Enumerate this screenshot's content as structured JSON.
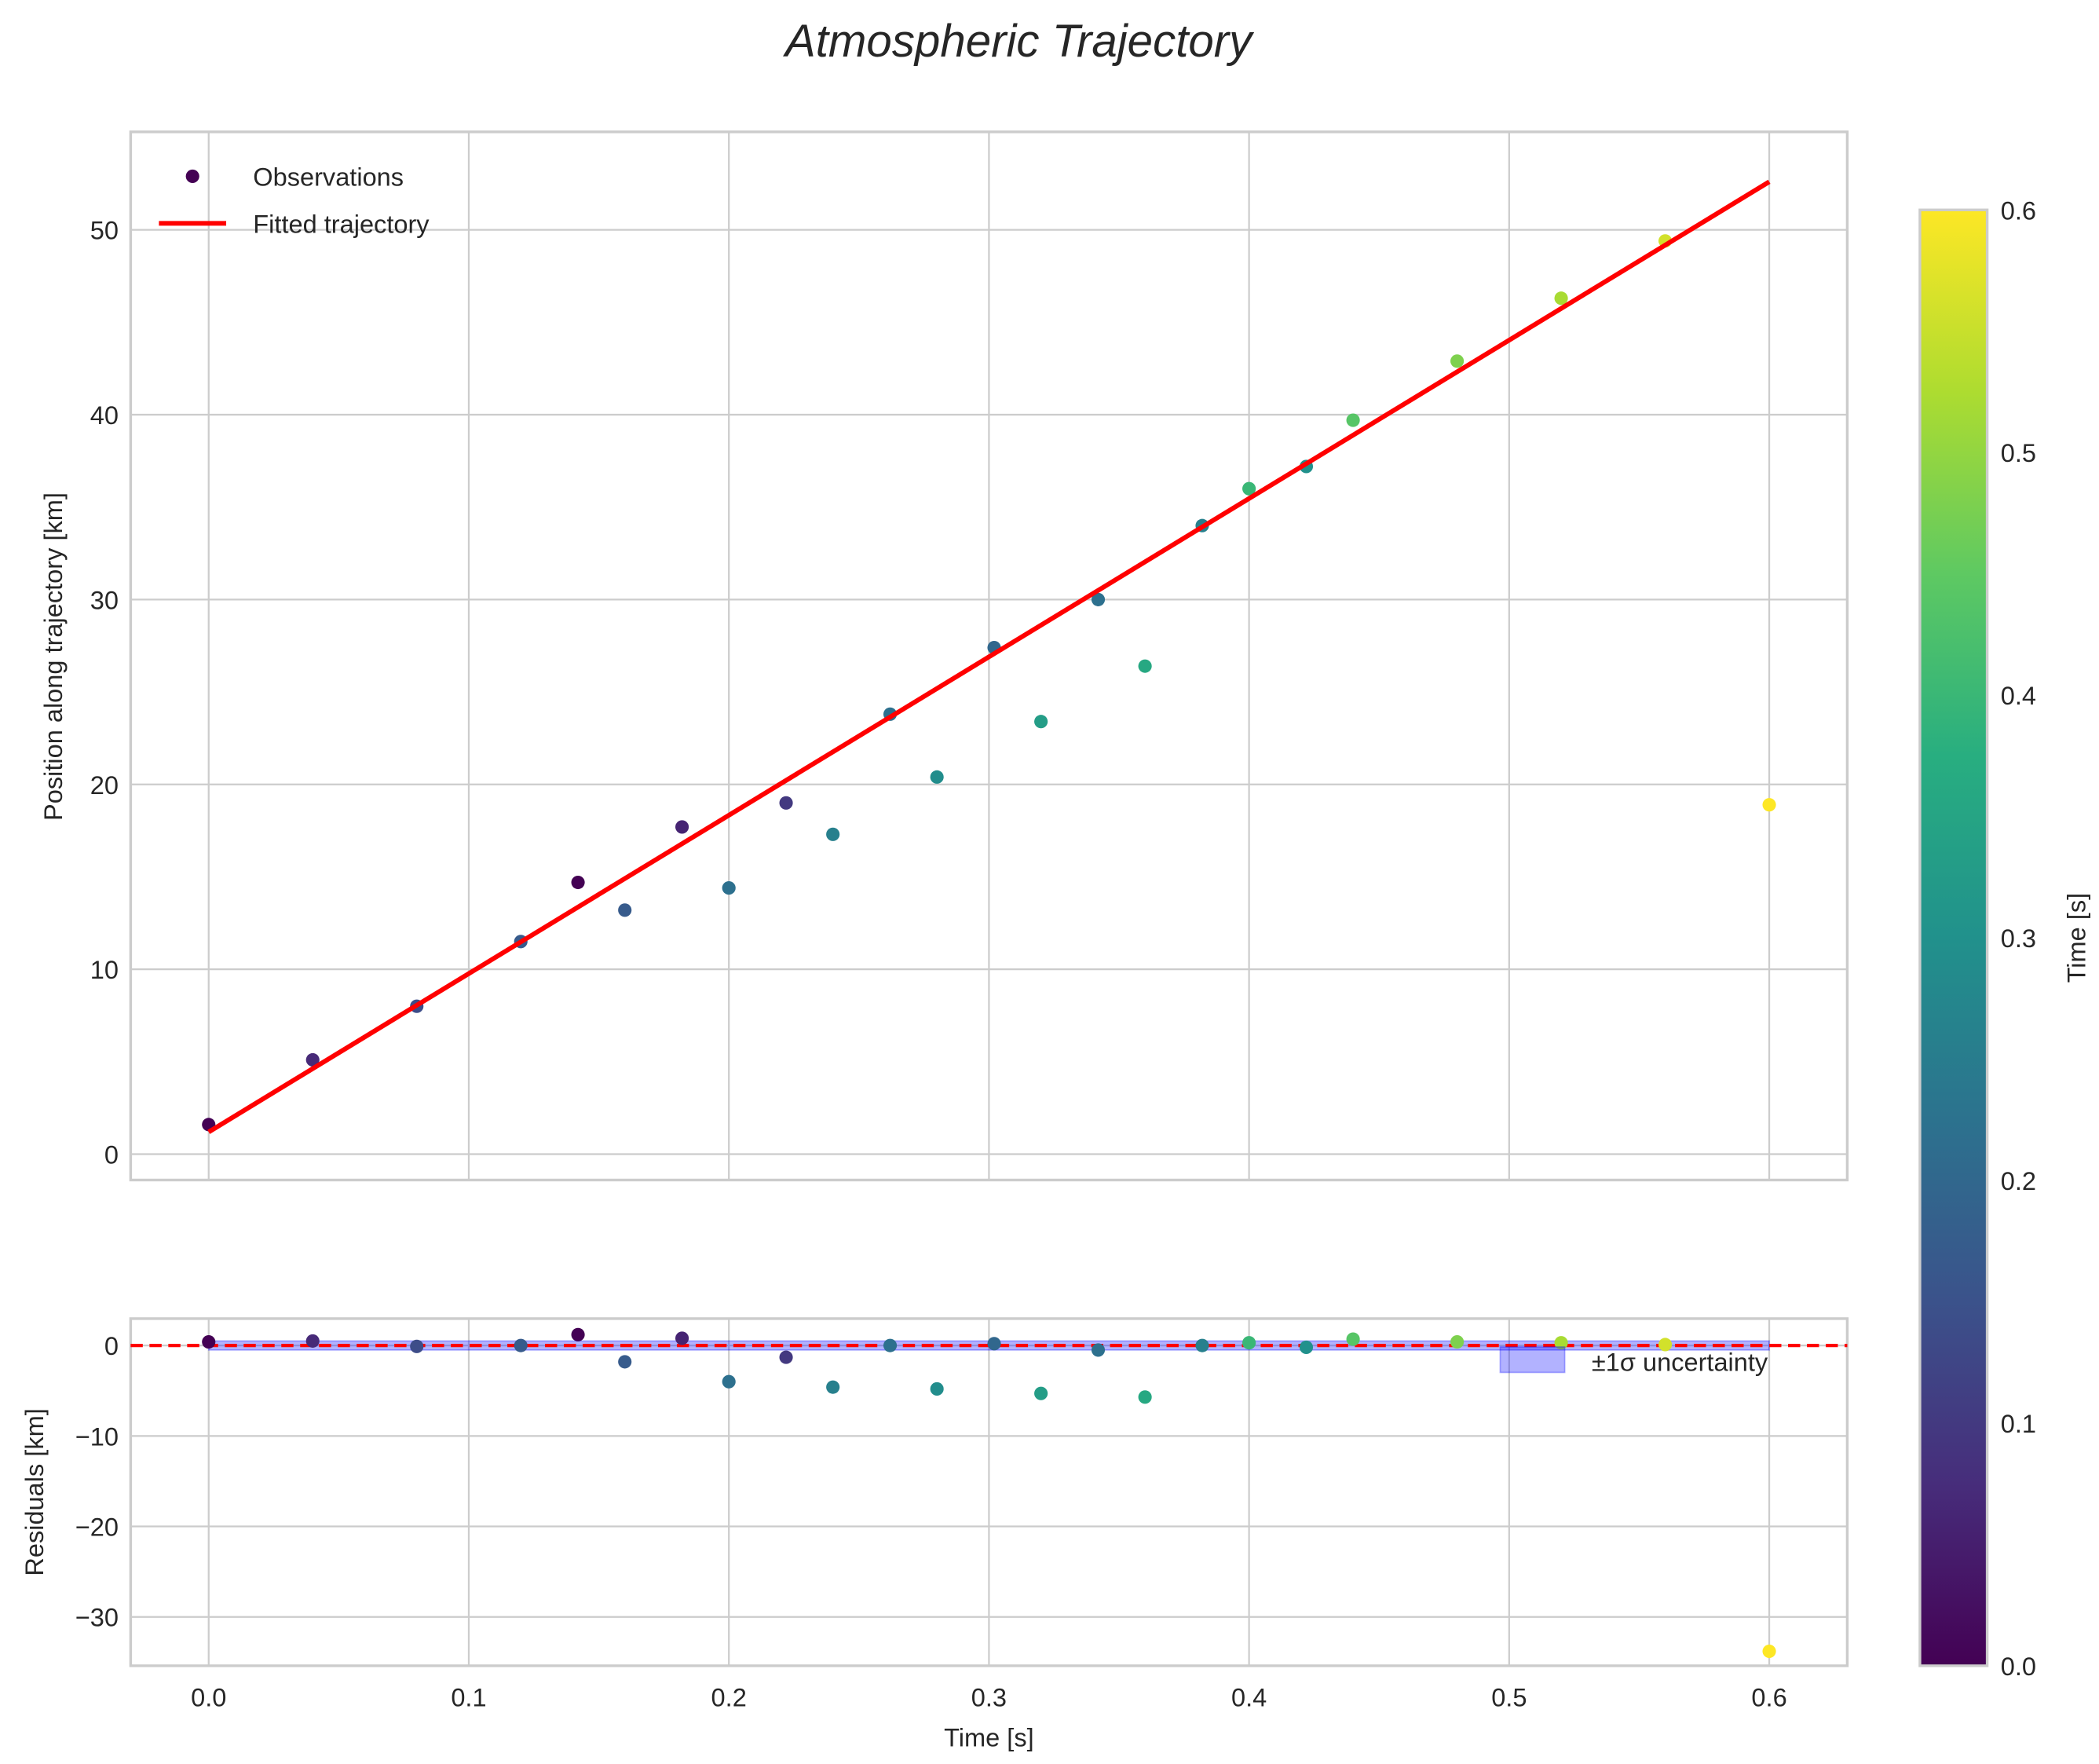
{
  "chart_data": [
    {
      "type": "scatter",
      "title": "Atmospheric Trajectory",
      "xlabel": "",
      "ylabel": "Position along trajectory [km]",
      "xlim": [
        -0.03,
        0.63
      ],
      "ylim": [
        -1.4,
        55.3
      ],
      "xticks": [
        "0.0",
        "0.1",
        "0.2",
        "0.3",
        "0.4",
        "0.5",
        "0.6"
      ],
      "yticks": [
        "0",
        "10",
        "20",
        "30",
        "40",
        "50"
      ],
      "grid": true,
      "legend": {
        "placement": "top-left",
        "entries": [
          "Observations",
          "Fitted trajectory"
        ]
      },
      "series": [
        {
          "name": "Observations",
          "type": "scatter",
          "x": [
            0,
            0.04,
            0.08,
            0.12,
            0.142,
            0.16,
            0.182,
            0.2,
            0.222,
            0.24,
            0.262,
            0.28,
            0.302,
            0.32,
            0.342,
            0.36,
            0.382,
            0.4,
            0.422,
            0.44,
            0.48,
            0.52,
            0.56,
            0.6
          ],
          "y": [
            1.6,
            5.1,
            8.0,
            11.5,
            14.7,
            13.2,
            17.7,
            14.4,
            19.0,
            17.3,
            23.8,
            20.4,
            27.4,
            23.4,
            30.0,
            26.4,
            34.0,
            36.0,
            37.2,
            39.7,
            42.9,
            46.3,
            49.4,
            18.9
          ],
          "color_value": [
            0.0,
            0.07,
            0.14,
            0.17,
            0.0,
            0.17,
            0.06,
            0.22,
            0.1,
            0.26,
            0.22,
            0.29,
            0.2,
            0.33,
            0.22,
            0.36,
            0.26,
            0.4,
            0.3,
            0.44,
            0.48,
            0.52,
            0.56,
            0.6
          ]
        },
        {
          "name": "Fitted trajectory",
          "type": "line",
          "x": [
            0,
            0.6
          ],
          "y": [
            1.2,
            52.6
          ],
          "color": "#ff0000"
        }
      ]
    },
    {
      "type": "scatter",
      "xlabel": "Time [s]",
      "ylabel": "Residuals [km]",
      "xlim": [
        -0.03,
        0.63
      ],
      "ylim": [
        -35.4,
        2.97
      ],
      "xticks": [
        "0.0",
        "0.1",
        "0.2",
        "0.3",
        "0.4",
        "0.5",
        "0.6"
      ],
      "yticks": [
        "0",
        "−10",
        "−20",
        "−30"
      ],
      "ytick_values": [
        0,
        -10,
        -20,
        -30
      ],
      "grid": true,
      "legend": {
        "placement": "upper-right",
        "entries": [
          "±1σ uncertainty"
        ]
      },
      "uncertainty_band": {
        "x": [
          0,
          0.6
        ],
        "sigma": 0.5,
        "color": "#0000ff"
      },
      "zero_line": {
        "y": 0,
        "color": "#ff0000",
        "style": "dashed"
      },
      "series": [
        {
          "name": "Residuals",
          "type": "scatter",
          "x": [
            0,
            0.04,
            0.08,
            0.12,
            0.142,
            0.16,
            0.182,
            0.2,
            0.222,
            0.24,
            0.262,
            0.28,
            0.302,
            0.32,
            0.342,
            0.36,
            0.382,
            0.4,
            0.422,
            0.44,
            0.48,
            0.52,
            0.56,
            0.6
          ],
          "y": [
            0.4,
            0.5,
            -0.1,
            0,
            1.2,
            -1.8,
            0.8,
            -4.0,
            -1.3,
            -4.6,
            0,
            -4.8,
            0.2,
            -5.3,
            -0.5,
            -5.7,
            0,
            0.3,
            -0.2,
            0.7,
            0.4,
            0.3,
            0.1,
            -33.8
          ]
        }
      ]
    }
  ],
  "colorbar": {
    "label": "Time [s]",
    "range": [
      0,
      0.6
    ],
    "ticks": [
      "0.0",
      "0.1",
      "0.2",
      "0.3",
      "0.4",
      "0.5",
      "0.6"
    ],
    "colormap": "viridis"
  }
}
